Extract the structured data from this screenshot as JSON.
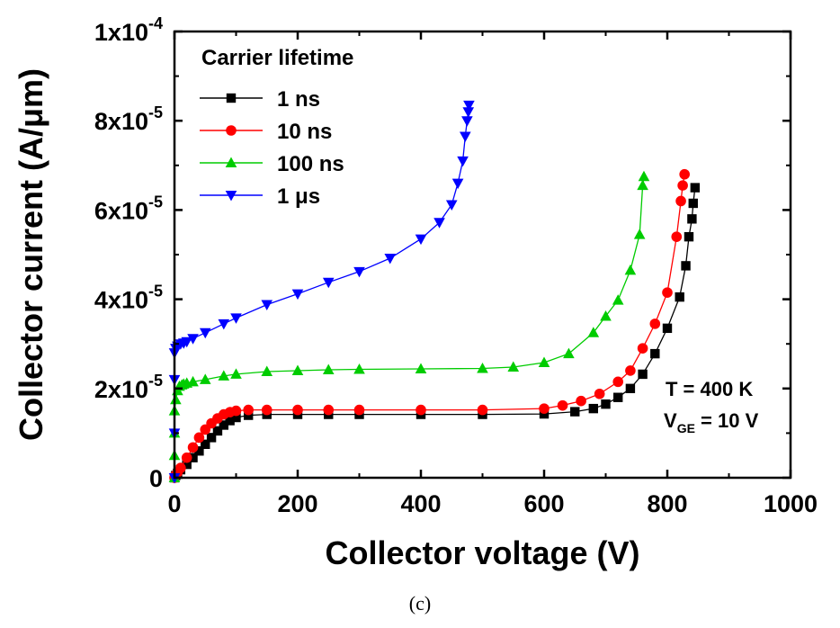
{
  "chart_data": {
    "type": "line",
    "xlabel": "Collector voltage (V)",
    "ylabel": "Collector current (A/μm)",
    "xlim": [
      0,
      1000
    ],
    "ylim": [
      0,
      0.0001
    ],
    "x_ticks": [
      {
        "value": 0,
        "label": "0"
      },
      {
        "value": 200,
        "label": "200"
      },
      {
        "value": 400,
        "label": "400"
      },
      {
        "value": 600,
        "label": "600"
      },
      {
        "value": 800,
        "label": "800"
      },
      {
        "value": 1000,
        "label": "1000"
      }
    ],
    "y_ticks": [
      {
        "value": 0,
        "mantissa": "0",
        "exp": ""
      },
      {
        "value": 2e-05,
        "mantissa": "2x10",
        "exp": "-5"
      },
      {
        "value": 4e-05,
        "mantissa": "4x10",
        "exp": "-5"
      },
      {
        "value": 6e-05,
        "mantissa": "6x10",
        "exp": "-5"
      },
      {
        "value": 8e-05,
        "mantissa": "8x10",
        "exp": "-5"
      },
      {
        "value": 0.0001,
        "mantissa": "1x10",
        "exp": "-4"
      }
    ],
    "grid": false,
    "legend": {
      "title": "Carrier lifetime",
      "position": "top-left"
    },
    "annotations": [
      {
        "text": "T = 400 K"
      },
      {
        "text_prefix": "V",
        "text_sub": "GE",
        "text_suffix": " = 10 V"
      }
    ],
    "series": [
      {
        "name": "1 ns",
        "color": "#000000",
        "marker": "square",
        "x": [
          0,
          2,
          5,
          10,
          20,
          30,
          40,
          50,
          60,
          70,
          80,
          90,
          100,
          120,
          150,
          200,
          250,
          300,
          400,
          500,
          600,
          650,
          680,
          700,
          720,
          740,
          760,
          780,
          800,
          820,
          830,
          835,
          840,
          842,
          845
        ],
        "y": [
          0,
          5e-07,
          1e-06,
          1.8e-06,
          3e-06,
          4.5e-06,
          6e-06,
          7.5e-06,
          9e-06,
          1.05e-05,
          1.18e-05,
          1.28e-05,
          1.35e-05,
          1.4e-05,
          1.42e-05,
          1.42e-05,
          1.42e-05,
          1.42e-05,
          1.42e-05,
          1.42e-05,
          1.43e-05,
          1.48e-05,
          1.55e-05,
          1.65e-05,
          1.8e-05,
          2e-05,
          2.32e-05,
          2.78e-05,
          3.35e-05,
          4.05e-05,
          4.75e-05,
          5.4e-05,
          5.8e-05,
          6.15e-05,
          6.5e-05
        ]
      },
      {
        "name": "10 ns",
        "color": "#ff0000",
        "marker": "circle",
        "x": [
          0,
          2,
          5,
          10,
          20,
          30,
          40,
          50,
          60,
          70,
          80,
          90,
          100,
          120,
          150,
          200,
          250,
          300,
          400,
          500,
          600,
          630,
          660,
          690,
          720,
          740,
          760,
          780,
          800,
          815,
          822,
          825,
          828
        ],
        "y": [
          0,
          6e-07,
          1.2e-06,
          2.2e-06,
          4.5e-06,
          6.8e-06,
          9e-06,
          1.08e-05,
          1.22e-05,
          1.33e-05,
          1.42e-05,
          1.47e-05,
          1.5e-05,
          1.52e-05,
          1.52e-05,
          1.52e-05,
          1.52e-05,
          1.52e-05,
          1.52e-05,
          1.52e-05,
          1.55e-05,
          1.62e-05,
          1.72e-05,
          1.88e-05,
          2.15e-05,
          2.4e-05,
          2.9e-05,
          3.45e-05,
          4.15e-05,
          5.4e-05,
          6.2e-05,
          6.55e-05,
          6.8e-05
        ]
      },
      {
        "name": "100 ns",
        "color": "#00cc00",
        "marker": "triangle-up",
        "x": [
          0,
          0,
          0,
          0,
          2,
          5,
          8,
          12,
          15,
          20,
          30,
          50,
          80,
          100,
          150,
          200,
          250,
          300,
          400,
          500,
          550,
          600,
          640,
          680,
          700,
          720,
          740,
          755,
          760,
          762
        ],
        "y": [
          0,
          5e-06,
          1e-05,
          1.5e-05,
          1.75e-05,
          1.95e-05,
          2.05e-05,
          2.08e-05,
          2.1e-05,
          2.12e-05,
          2.15e-05,
          2.2e-05,
          2.28e-05,
          2.32e-05,
          2.38e-05,
          2.4e-05,
          2.42e-05,
          2.43e-05,
          2.44e-05,
          2.45e-05,
          2.48e-05,
          2.58e-05,
          2.78e-05,
          3.25e-05,
          3.62e-05,
          3.98e-05,
          4.65e-05,
          5.45e-05,
          6.55e-05,
          6.75e-05
        ]
      },
      {
        "name": "1 μs",
        "color": "#0000ff",
        "marker": "triangle-down",
        "x": [
          0,
          0,
          0,
          0,
          2,
          5,
          10,
          15,
          20,
          30,
          50,
          80,
          100,
          150,
          200,
          250,
          300,
          350,
          400,
          430,
          450,
          460,
          468,
          472,
          475,
          477,
          478
        ],
        "y": [
          0,
          1e-05,
          2.2e-05,
          2.8e-05,
          2.9e-05,
          2.95e-05,
          3e-05,
          3.02e-05,
          3.05e-05,
          3.12e-05,
          3.25e-05,
          3.45e-05,
          3.58e-05,
          3.88e-05,
          4.12e-05,
          4.38e-05,
          4.62e-05,
          4.92e-05,
          5.35e-05,
          5.72e-05,
          6.12e-05,
          6.6e-05,
          7.1e-05,
          7.65e-05,
          8e-05,
          8.2e-05,
          8.35e-05
        ]
      }
    ]
  },
  "caption": "(c)"
}
